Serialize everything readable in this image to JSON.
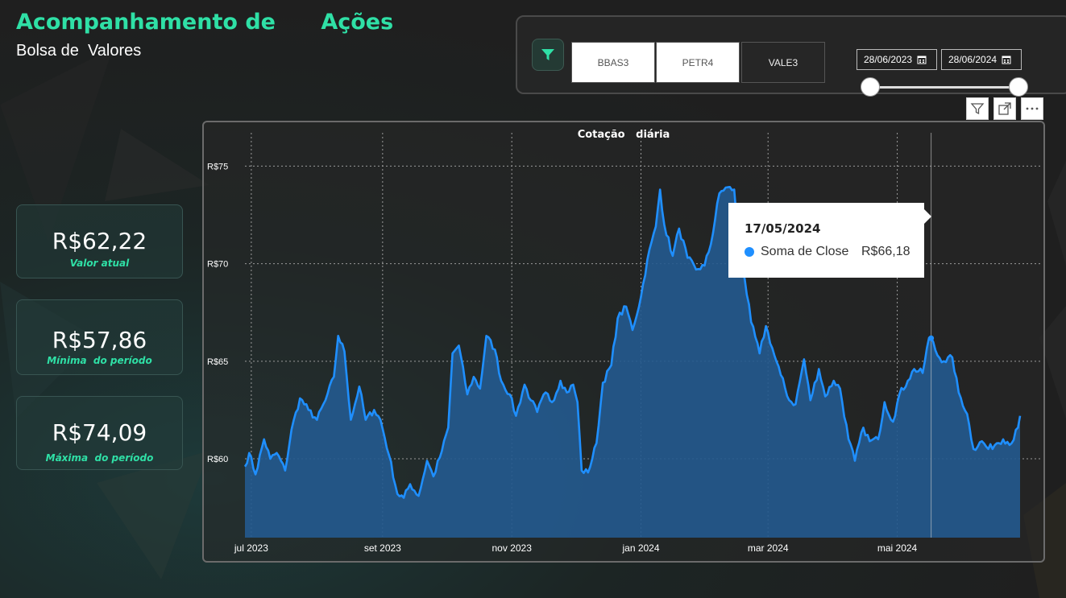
{
  "header": {
    "title": "Acompanhamento de      Ações",
    "subtitle": "Bolsa de  Valores"
  },
  "filters": {
    "tickers": [
      {
        "label": "BBAS3",
        "selected": true
      },
      {
        "label": "PETR4",
        "selected": true
      },
      {
        "label": "VALE3",
        "selected": false
      }
    ],
    "date_start": "28/06/2023",
    "date_end": "28/06/2024",
    "icons": {
      "filter": "filter-icon",
      "calendar": "calendar-icon"
    }
  },
  "visual_header": {
    "icons": [
      "filter-outline-icon",
      "focus-mode-icon",
      "more-options-icon"
    ]
  },
  "kpis": [
    {
      "value": "R$62,22",
      "label": "Valor atual"
    },
    {
      "value": "R$57,86",
      "label": "Mínima  do período"
    },
    {
      "value": "R$74,09",
      "label": "Máxima  do período"
    }
  ],
  "tooltip": {
    "date": "17/05/2024",
    "series": "Soma de Close",
    "value": "R$66,18"
  },
  "chart_data": {
    "type": "area",
    "title": "Cotação   diária",
    "xlabel": "",
    "ylabel": "",
    "y_ticks": [
      60,
      65,
      70,
      75
    ],
    "y_tick_labels": [
      "R$60",
      "R$65",
      "R$70",
      "R$75"
    ],
    "ylim": [
      55.96,
      76.5
    ],
    "x_ticks": [
      "jul 2023",
      "set 2023",
      "nov 2023",
      "jan 2024",
      "mar 2024",
      "mai 2024"
    ],
    "x_tick_dates": [
      "2023-07-01",
      "2023-09-01",
      "2023-11-01",
      "2024-01-01",
      "2024-03-01",
      "2024-05-01"
    ],
    "xlim": [
      "2023-06-28",
      "2024-06-28"
    ],
    "grid": true,
    "series_color": "#1f8fff",
    "fill_color": "#245a8f",
    "anchors": [
      [
        "2023-06-28",
        59.6
      ],
      [
        "2023-06-30",
        60.3
      ],
      [
        "2023-07-03",
        59.2
      ],
      [
        "2023-07-07",
        61.0
      ],
      [
        "2023-07-10",
        60.0
      ],
      [
        "2023-07-13",
        60.3
      ],
      [
        "2023-07-17",
        59.4
      ],
      [
        "2023-07-20",
        61.5
      ],
      [
        "2023-07-24",
        63.1
      ],
      [
        "2023-07-28",
        62.5
      ],
      [
        "2023-08-01",
        62.0
      ],
      [
        "2023-08-05",
        63.0
      ],
      [
        "2023-08-09",
        64.2
      ],
      [
        "2023-08-11",
        66.3
      ],
      [
        "2023-08-14",
        65.5
      ],
      [
        "2023-08-17",
        62.0
      ],
      [
        "2023-08-21",
        63.7
      ],
      [
        "2023-08-24",
        62.0
      ],
      [
        "2023-08-28",
        62.5
      ],
      [
        "2023-08-31",
        62.0
      ],
      [
        "2023-09-04",
        60.2
      ],
      [
        "2023-09-08",
        58.2
      ],
      [
        "2023-09-11",
        58.0
      ],
      [
        "2023-09-14",
        58.7
      ],
      [
        "2023-09-18",
        58.1
      ],
      [
        "2023-09-22",
        59.9
      ],
      [
        "2023-09-25",
        59.1
      ],
      [
        "2023-09-29",
        60.4
      ],
      [
        "2023-10-02",
        61.6
      ],
      [
        "2023-10-04",
        65.4
      ],
      [
        "2023-10-07",
        65.8
      ],
      [
        "2023-10-11",
        63.3
      ],
      [
        "2023-10-14",
        64.2
      ],
      [
        "2023-10-17",
        63.6
      ],
      [
        "2023-10-20",
        66.3
      ],
      [
        "2023-10-24",
        65.6
      ],
      [
        "2023-10-27",
        64.0
      ],
      [
        "2023-10-31",
        63.3
      ],
      [
        "2023-11-03",
        62.2
      ],
      [
        "2023-11-07",
        63.8
      ],
      [
        "2023-11-10",
        63.0
      ],
      [
        "2023-11-13",
        62.4
      ],
      [
        "2023-11-17",
        63.4
      ],
      [
        "2023-11-20",
        62.9
      ],
      [
        "2023-11-24",
        64.0
      ],
      [
        "2023-11-27",
        63.4
      ],
      [
        "2023-11-30",
        63.8
      ],
      [
        "2023-12-02",
        62.9
      ],
      [
        "2023-12-04",
        59.4
      ],
      [
        "2023-12-07",
        59.3
      ],
      [
        "2023-12-11",
        60.8
      ],
      [
        "2023-12-14",
        63.9
      ],
      [
        "2023-12-18",
        64.8
      ],
      [
        "2023-12-21",
        67.2
      ],
      [
        "2023-12-25",
        67.8
      ],
      [
        "2023-12-28",
        66.6
      ],
      [
        "2024-01-01",
        68.3
      ],
      [
        "2024-01-04",
        70.2
      ],
      [
        "2024-01-08",
        71.9
      ],
      [
        "2024-01-10",
        73.8
      ],
      [
        "2024-01-12",
        72.0
      ],
      [
        "2024-01-16",
        70.4
      ],
      [
        "2024-01-19",
        71.8
      ],
      [
        "2024-01-23",
        70.3
      ],
      [
        "2024-01-27",
        69.7
      ],
      [
        "2024-01-31",
        69.9
      ],
      [
        "2024-02-03",
        71.0
      ],
      [
        "2024-02-07",
        73.6
      ],
      [
        "2024-02-10",
        73.9
      ],
      [
        "2024-02-14",
        73.8
      ],
      [
        "2024-02-16",
        71.0
      ],
      [
        "2024-02-19",
        69.2
      ],
      [
        "2024-02-22",
        67.0
      ],
      [
        "2024-02-26",
        65.4
      ],
      [
        "2024-02-29",
        66.8
      ],
      [
        "2024-03-04",
        65.3
      ],
      [
        "2024-03-07",
        64.3
      ],
      [
        "2024-03-11",
        63.0
      ],
      [
        "2024-03-14",
        62.8
      ],
      [
        "2024-03-18",
        65.1
      ],
      [
        "2024-03-21",
        63.0
      ],
      [
        "2024-03-25",
        64.6
      ],
      [
        "2024-03-28",
        63.2
      ],
      [
        "2024-04-01",
        64.0
      ],
      [
        "2024-04-04",
        63.6
      ],
      [
        "2024-04-08",
        61.0
      ],
      [
        "2024-04-11",
        59.9
      ],
      [
        "2024-04-15",
        61.6
      ],
      [
        "2024-04-18",
        60.9
      ],
      [
        "2024-04-22",
        61.0
      ],
      [
        "2024-04-25",
        62.9
      ],
      [
        "2024-04-29",
        61.9
      ],
      [
        "2024-05-02",
        63.3
      ],
      [
        "2024-05-06",
        64.0
      ],
      [
        "2024-05-09",
        64.6
      ],
      [
        "2024-05-13",
        64.4
      ],
      [
        "2024-05-16",
        66.2
      ],
      [
        "2024-05-17",
        66.2
      ],
      [
        "2024-05-20",
        65.3
      ],
      [
        "2024-05-23",
        65.0
      ],
      [
        "2024-05-27",
        65.2
      ],
      [
        "2024-05-30",
        63.4
      ],
      [
        "2024-06-03",
        62.3
      ],
      [
        "2024-06-06",
        60.5
      ],
      [
        "2024-06-10",
        60.9
      ],
      [
        "2024-06-13",
        60.5
      ],
      [
        "2024-06-17",
        60.8
      ],
      [
        "2024-06-20",
        61.0
      ],
      [
        "2024-06-24",
        60.8
      ],
      [
        "2024-06-27",
        61.6
      ],
      [
        "2024-06-28",
        62.2
      ]
    ],
    "tooltip_point": [
      "2024-05-17",
      66.18
    ]
  }
}
